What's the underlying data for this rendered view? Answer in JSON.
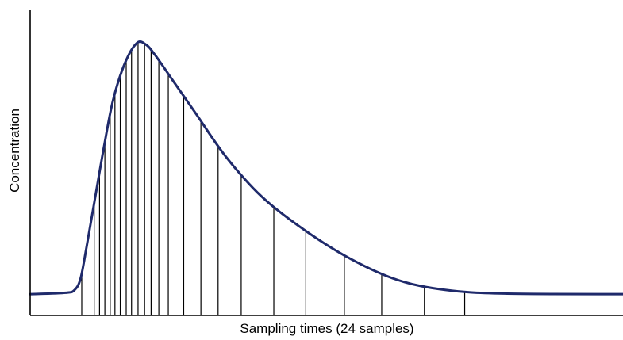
{
  "chart_data": {
    "type": "line",
    "title": "",
    "xlabel": "Sampling times (24 samples)",
    "ylabel": "Concentration",
    "ticks": "none",
    "grid": false,
    "legend": "none",
    "sample_count": 24,
    "colors": {
      "curve": "#1f2a6b",
      "sample_lines": "#000000",
      "axes": "#000000"
    },
    "xlim": [
      0,
      1
    ],
    "ylim": [
      0,
      1
    ],
    "series": [
      {
        "points": [
          [
            0.0,
            0.075
          ],
          [
            0.06,
            0.08
          ],
          [
            0.075,
            0.09
          ],
          [
            0.085,
            0.13
          ],
          [
            0.095,
            0.24
          ],
          [
            0.11,
            0.42
          ],
          [
            0.125,
            0.6
          ],
          [
            0.14,
            0.76
          ],
          [
            0.16,
            0.89
          ],
          [
            0.18,
            0.96
          ],
          [
            0.195,
            0.955
          ],
          [
            0.21,
            0.92
          ],
          [
            0.24,
            0.83
          ],
          [
            0.28,
            0.71
          ],
          [
            0.33,
            0.56
          ],
          [
            0.39,
            0.42
          ],
          [
            0.46,
            0.305
          ],
          [
            0.54,
            0.2
          ],
          [
            0.62,
            0.125
          ],
          [
            0.7,
            0.09
          ],
          [
            0.8,
            0.077
          ],
          [
            1.0,
            0.075
          ]
        ]
      }
    ],
    "sample_times": [
      0.087,
      0.108,
      0.117,
      0.126,
      0.135,
      0.143,
      0.152,
      0.162,
      0.171,
      0.182,
      0.193,
      0.204,
      0.217,
      0.233,
      0.259,
      0.288,
      0.317,
      0.356,
      0.411,
      0.465,
      0.53,
      0.593,
      0.665,
      0.733
    ]
  }
}
